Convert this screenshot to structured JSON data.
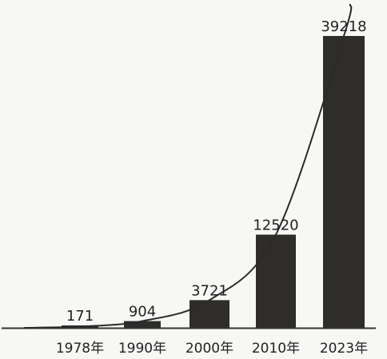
{
  "chart_data": {
    "type": "bar",
    "categories": [
      "1978年",
      "1990年",
      "2000年",
      "2010年",
      "2023年"
    ],
    "values": [
      171,
      904,
      3721,
      12520,
      39218
    ],
    "value_labels": [
      "171",
      "904",
      "3721",
      "12520",
      "39218"
    ],
    "title": "",
    "xlabel": "",
    "ylabel": "",
    "ylim": [
      0,
      39218
    ],
    "trend_line": true,
    "grid": false,
    "legend": "none",
    "colors": {
      "bar": "#2f2d2b",
      "line": "#2a2a2a",
      "axis": "#333333",
      "background": "#f7f7f5"
    }
  }
}
